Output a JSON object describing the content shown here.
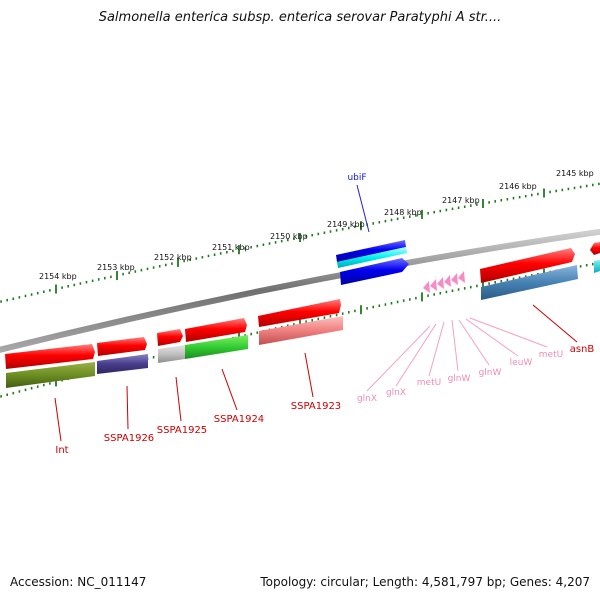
{
  "title": "Salmonella enterica subsp. enterica serovar Paratyphi A str....",
  "footer": {
    "accession": "Accession: NC_011147",
    "summary": "Topology: circular; Length: 4,581,797 bp; Genes: 4,207"
  },
  "kbp_labels": [
    "2154 kbp",
    "2153 kbp",
    "2152 kbp",
    "2151 kbp",
    "2150 kbp",
    "2149 kbp",
    "2148 kbp",
    "2147 kbp",
    "2146 kbp",
    "2145 kbp"
  ],
  "gene_labels": {
    "ubiF": "ubiF",
    "Int": "Int",
    "SSPA1926": "SSPA1926",
    "SSPA1925": "SSPA1925",
    "SSPA1924": "SSPA1924",
    "SSPA1923": "SSPA1923",
    "glnX_1": "glnX",
    "glnX_2": "glnX",
    "metU_1": "metU",
    "glnW_1": "glnW",
    "glnW_2": "glnW",
    "leuW": "leuW",
    "metU_2": "metU",
    "asnB": "asnB"
  },
  "colors": {
    "forward_gene": "#ff0000",
    "ubif_gene": "#1010e0",
    "ubif_label": "#1a1adc",
    "locus_label": "#cc0000",
    "trna_label": "#f08cb4",
    "trna_marker": "#f48cc8",
    "scale_tick": "#1e7a1e",
    "backbone": "#808080"
  }
}
